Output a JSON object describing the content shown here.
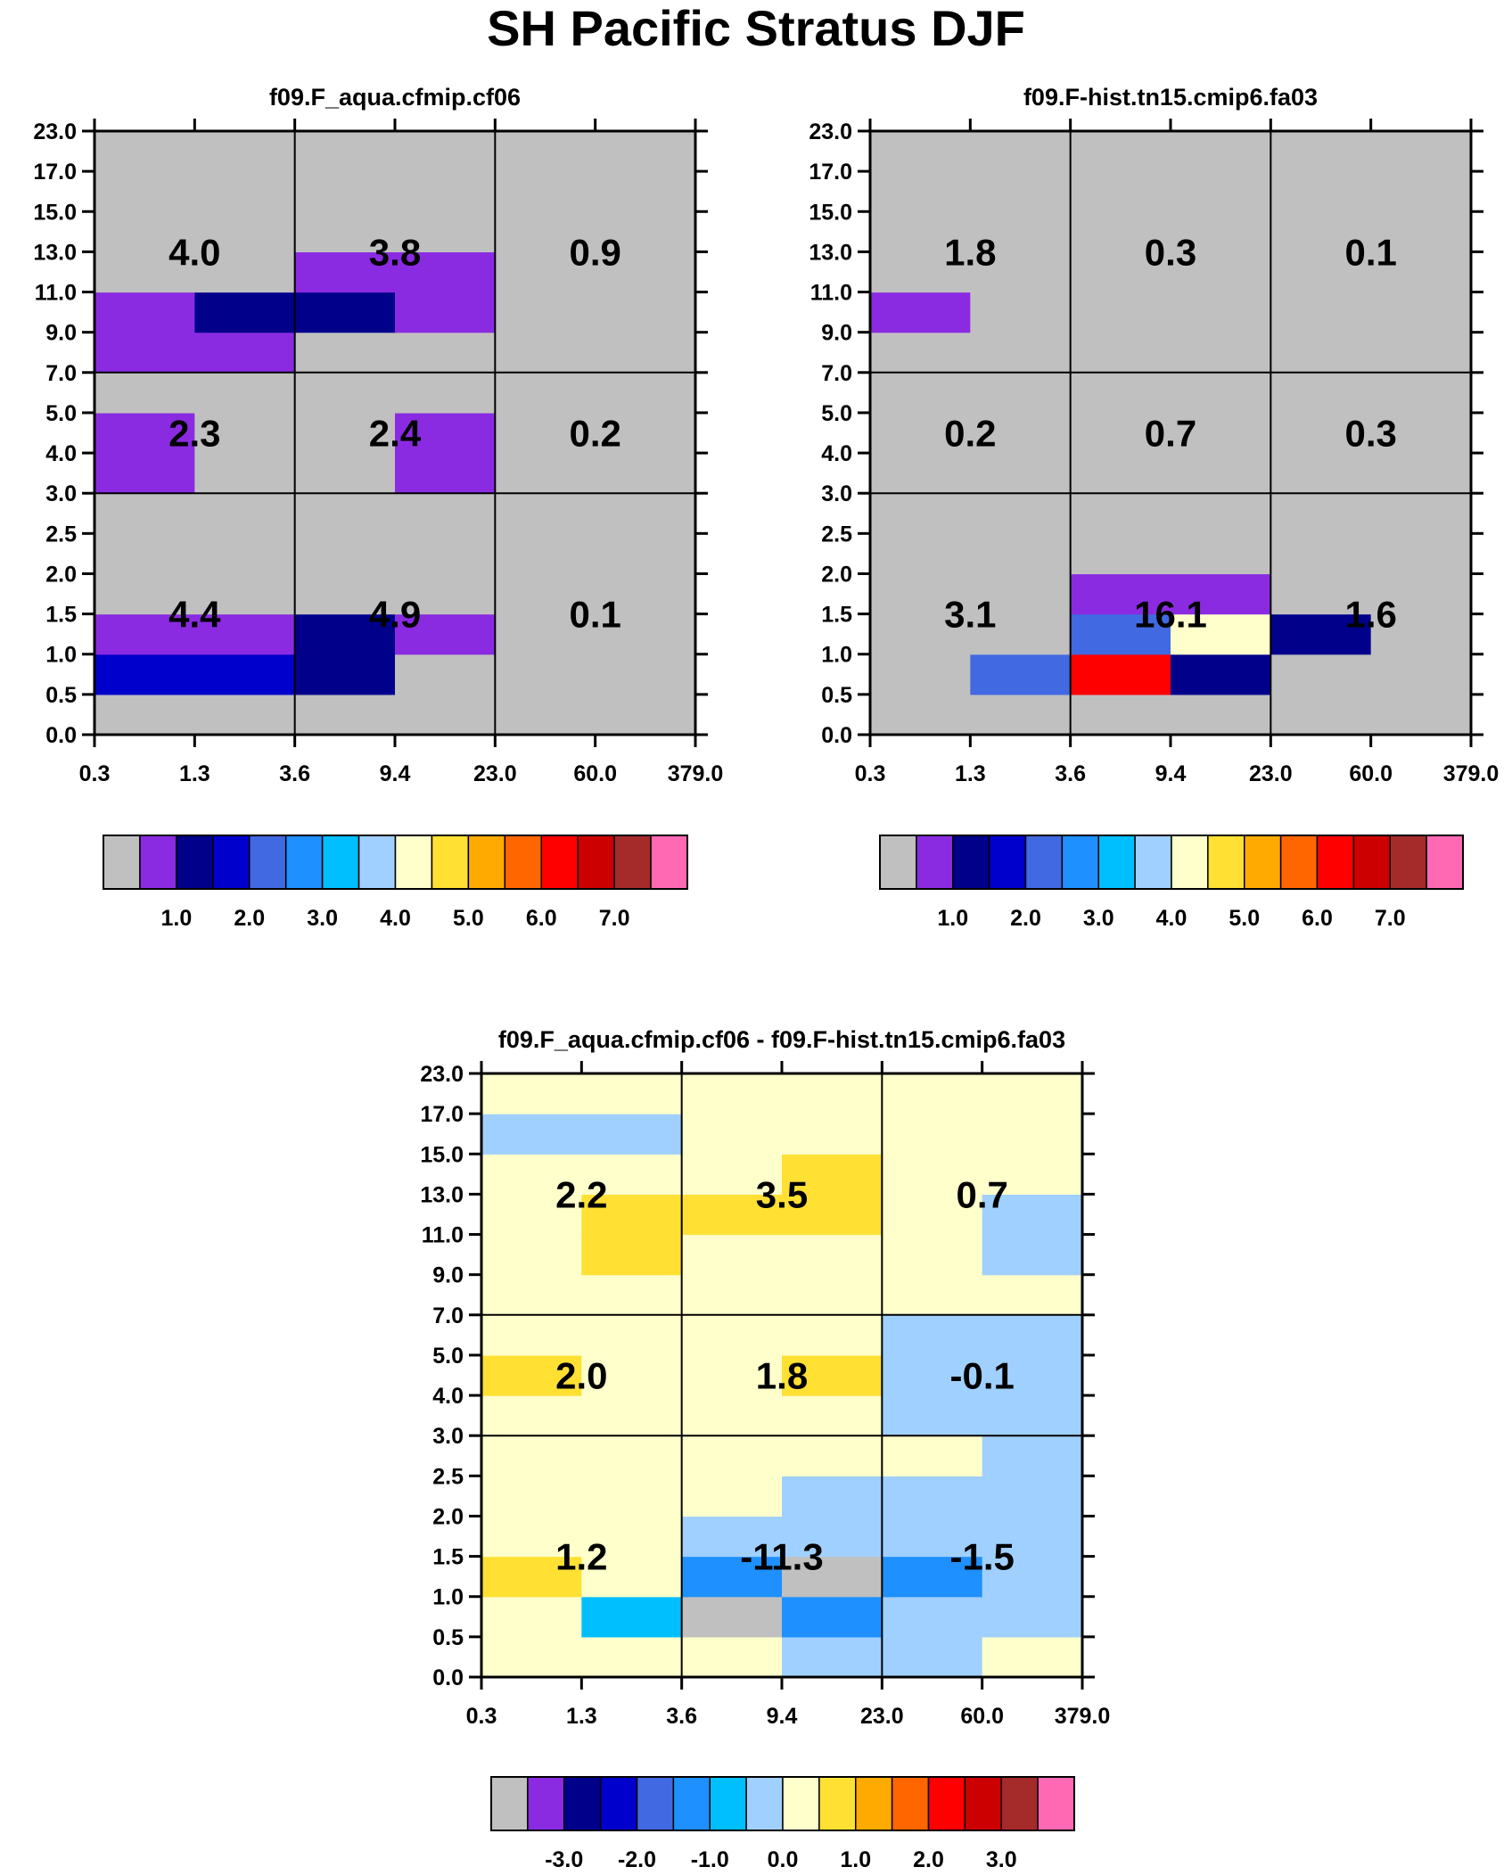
{
  "title": "SH Pacific Stratus DJF",
  "colormaps": {
    "main": [
      "#c0c0c0",
      "#8a2be2",
      "#00008b",
      "#0000cd",
      "#4169e1",
      "#1e90ff",
      "#00bfff",
      "#a0d0ff",
      "#ffffcc",
      "#ffe033",
      "#ffaa00",
      "#ff6600",
      "#ff0000",
      "#cc0000",
      "#a52a2a",
      "#ff69b4"
    ]
  },
  "chart_data": [
    {
      "type": "heatmap",
      "title": "f09.F_aqua.cfmip.cf06",
      "x_ticks": [
        "0.3",
        "1.3",
        "3.6",
        "9.4",
        "23.0",
        "60.0",
        "379.0"
      ],
      "y_ticks": [
        "0.0",
        "0.5",
        "1.0",
        "1.5",
        "2.0",
        "2.5",
        "3.0",
        "4.0",
        "5.0",
        "7.0",
        "9.0",
        "11.0",
        "13.0",
        "15.0",
        "17.0",
        "23.0"
      ],
      "cells": [
        [
          0,
          0,
          0,
          0,
          0,
          0
        ],
        [
          3,
          3,
          2,
          0,
          0,
          0
        ],
        [
          1,
          1,
          2,
          1,
          0,
          0
        ],
        [
          0,
          0,
          0,
          0,
          0,
          0
        ],
        [
          0,
          0,
          0,
          0,
          0,
          0
        ],
        [
          0,
          0,
          0,
          0,
          0,
          0
        ],
        [
          1,
          0,
          0,
          1,
          0,
          0
        ],
        [
          1,
          0,
          0,
          1,
          0,
          0
        ],
        [
          0,
          0,
          0,
          0,
          0,
          0
        ],
        [
          1,
          1,
          0,
          0,
          0,
          0
        ],
        [
          1,
          2,
          2,
          1,
          0,
          0
        ],
        [
          0,
          0,
          1,
          1,
          0,
          0
        ],
        [
          0,
          0,
          0,
          0,
          0,
          0
        ],
        [
          0,
          0,
          0,
          0,
          0,
          0
        ],
        [
          0,
          0,
          0,
          0,
          0,
          0
        ]
      ],
      "box_values": [
        [
          "4.4",
          "4.9",
          "0.1"
        ],
        [
          "2.3",
          "2.4",
          "0.2"
        ],
        [
          "4.0",
          "3.8",
          "0.9"
        ]
      ],
      "colorbar_labels": [
        "1.0",
        "2.0",
        "3.0",
        "4.0",
        "5.0",
        "6.0",
        "7.0"
      ]
    },
    {
      "type": "heatmap",
      "title": "f09.F-hist.tn15.cmip6.fa03",
      "x_ticks": [
        "0.3",
        "1.3",
        "3.6",
        "9.4",
        "23.0",
        "60.0",
        "379.0"
      ],
      "y_ticks": [
        "0.0",
        "0.5",
        "1.0",
        "1.5",
        "2.0",
        "2.5",
        "3.0",
        "4.0",
        "5.0",
        "7.0",
        "9.0",
        "11.0",
        "13.0",
        "15.0",
        "17.0",
        "23.0"
      ],
      "cells": [
        [
          0,
          0,
          0,
          0,
          0,
          0
        ],
        [
          0,
          4,
          12,
          2,
          0,
          0
        ],
        [
          0,
          0,
          4,
          8,
          2,
          0
        ],
        [
          0,
          0,
          1,
          1,
          0,
          0
        ],
        [
          0,
          0,
          0,
          0,
          0,
          0
        ],
        [
          0,
          0,
          0,
          0,
          0,
          0
        ],
        [
          0,
          0,
          0,
          0,
          0,
          0
        ],
        [
          0,
          0,
          0,
          0,
          0,
          0
        ],
        [
          0,
          0,
          0,
          0,
          0,
          0
        ],
        [
          0,
          0,
          0,
          0,
          0,
          0
        ],
        [
          1,
          0,
          0,
          0,
          0,
          0
        ],
        [
          0,
          0,
          0,
          0,
          0,
          0
        ],
        [
          0,
          0,
          0,
          0,
          0,
          0
        ],
        [
          0,
          0,
          0,
          0,
          0,
          0
        ],
        [
          0,
          0,
          0,
          0,
          0,
          0
        ]
      ],
      "box_values": [
        [
          "3.1",
          "16.1",
          "1.6"
        ],
        [
          "0.2",
          "0.7",
          "0.3"
        ],
        [
          "1.8",
          "0.3",
          "0.1"
        ]
      ],
      "colorbar_labels": [
        "1.0",
        "2.0",
        "3.0",
        "4.0",
        "5.0",
        "6.0",
        "7.0"
      ]
    },
    {
      "type": "heatmap",
      "title": "f09.F_aqua.cfmip.cf06 - f09.F-hist.tn15.cmip6.fa03",
      "x_ticks": [
        "0.3",
        "1.3",
        "3.6",
        "9.4",
        "23.0",
        "60.0",
        "379.0"
      ],
      "y_ticks": [
        "0.0",
        "0.5",
        "1.0",
        "1.5",
        "2.0",
        "2.5",
        "3.0",
        "4.0",
        "5.0",
        "7.0",
        "9.0",
        "11.0",
        "13.0",
        "15.0",
        "17.0",
        "23.0"
      ],
      "cells": [
        [
          8,
          8,
          8,
          7,
          7,
          8
        ],
        [
          8,
          6,
          0,
          5,
          7,
          7
        ],
        [
          9,
          8,
          5,
          0,
          5,
          7
        ],
        [
          8,
          8,
          7,
          7,
          7,
          7
        ],
        [
          8,
          8,
          8,
          7,
          7,
          7
        ],
        [
          8,
          8,
          8,
          8,
          8,
          7
        ],
        [
          8,
          8,
          8,
          8,
          7,
          7
        ],
        [
          9,
          8,
          8,
          9,
          7,
          7
        ],
        [
          8,
          8,
          8,
          8,
          7,
          7
        ],
        [
          8,
          8,
          8,
          8,
          8,
          8
        ],
        [
          8,
          9,
          8,
          8,
          8,
          7
        ],
        [
          8,
          9,
          9,
          9,
          8,
          7
        ],
        [
          8,
          8,
          8,
          9,
          8,
          8
        ],
        [
          7,
          7,
          8,
          8,
          8,
          8
        ],
        [
          8,
          8,
          8,
          8,
          8,
          8
        ]
      ],
      "box_values": [
        [
          "1.2",
          "-11.3",
          "-1.5"
        ],
        [
          "2.0",
          "1.8",
          "-0.1"
        ],
        [
          "2.2",
          "3.5",
          "0.7"
        ]
      ],
      "colorbar_labels": [
        "-3.0",
        "-2.0",
        "-1.0",
        "0.0",
        "1.0",
        "2.0",
        "3.0"
      ]
    }
  ]
}
